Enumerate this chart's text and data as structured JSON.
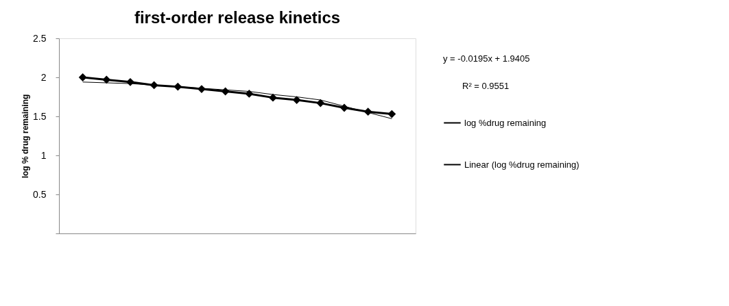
{
  "chart_data": {
    "type": "line",
    "title": "first-order release kinetics",
    "ylabel": "log % drug remaining",
    "categories": [
      null,
      null,
      null,
      null,
      null,
      null,
      null,
      null,
      null,
      null,
      null,
      null,
      null,
      null
    ],
    "series": [
      {
        "name": "log %drug remaining",
        "color": "#000000",
        "marker": "diamond",
        "values": [
          2.0,
          1.97,
          1.94,
          1.9,
          1.88,
          1.85,
          1.82,
          1.79,
          1.74,
          1.71,
          1.67,
          1.61,
          1.56,
          1.53
        ]
      },
      {
        "name": "Linear (log %drug remaining)",
        "color": "#000000",
        "marker": "none",
        "values": [
          1.94,
          1.93,
          1.92,
          1.9,
          1.88,
          1.86,
          1.84,
          1.82,
          1.78,
          1.75,
          1.71,
          1.63,
          1.55,
          1.47
        ]
      }
    ],
    "ylim": [
      0,
      2.5
    ],
    "yticks": [
      {
        "value": 0,
        "label": null
      },
      0.5,
      1,
      1.5,
      2,
      2.5
    ],
    "tick_labels": "y",
    "grid": false,
    "legend": "right",
    "annotations": [
      "y = -0.0195x + 1.9405",
      "R² = 0.9551"
    ]
  }
}
